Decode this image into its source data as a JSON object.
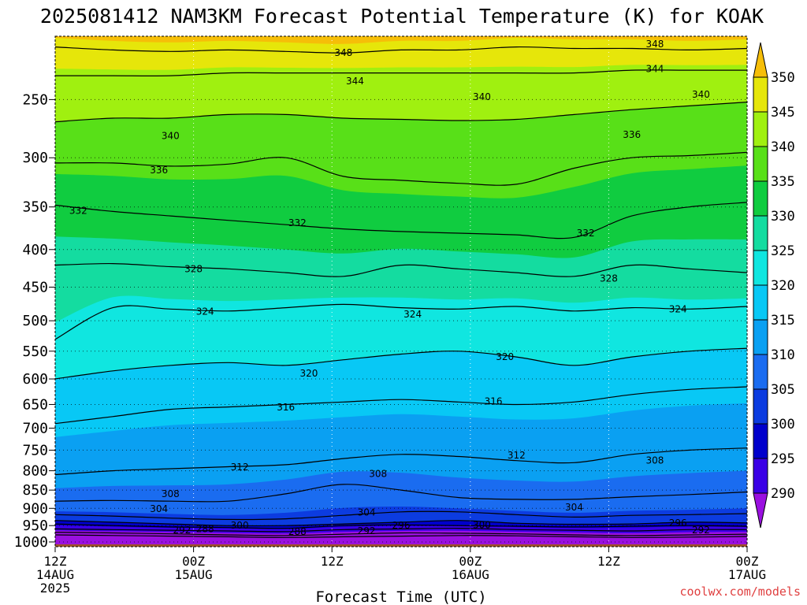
{
  "chart_data": {
    "type": "heatmap",
    "title": "2025081412 NAM3KM Forecast Potential Temperature (K) for KOAK",
    "xlabel": "Forecast Time (UTC)",
    "ylabel": "",
    "y_axis": {
      "scale": "log",
      "reversed": true,
      "range": [
        1015,
        205
      ],
      "ticks": [
        250,
        300,
        350,
        400,
        450,
        500,
        550,
        600,
        650,
        700,
        750,
        800,
        850,
        900,
        950,
        1000
      ]
    },
    "x_axis": {
      "range_hours": [
        0,
        60
      ],
      "ticks": [
        {
          "hour": 0,
          "line1": "12Z",
          "line2": "14AUG",
          "line3": "2025"
        },
        {
          "hour": 12,
          "line1": "00Z",
          "line2": "15AUG",
          "line3": ""
        },
        {
          "hour": 24,
          "line1": "12Z",
          "line2": "",
          "line3": ""
        },
        {
          "hour": 36,
          "line1": "00Z",
          "line2": "16AUG",
          "line3": ""
        },
        {
          "hour": 48,
          "line1": "12Z",
          "line2": "",
          "line3": ""
        },
        {
          "hour": 60,
          "line1": "00Z",
          "line2": "17AUG",
          "line3": ""
        }
      ]
    },
    "colorbar": {
      "levels": [
        290,
        295,
        300,
        305,
        310,
        315,
        320,
        325,
        330,
        335,
        340,
        345,
        350
      ],
      "colors": [
        "#9a10e0",
        "#3a00e6",
        "#0000cc",
        "#0c3ce0",
        "#1a6cf0",
        "#0aa0f2",
        "#08c8f5",
        "#10e6e0",
        "#14dca0",
        "#10cc40",
        "#58e018",
        "#a0f010",
        "#e6e60a",
        "#f6be08"
      ]
    },
    "grid": "dotted",
    "series": [
      {
        "theta": 286,
        "p": [
          978,
          980,
          982,
          984,
          986,
          984,
          982,
          980,
          981,
          984,
          986,
          985,
          983
        ]
      },
      {
        "theta": 288,
        "p": [
          970,
          972,
          975,
          978,
          980,
          976,
          972,
          973,
          975,
          978,
          980,
          978,
          976
        ]
      },
      {
        "theta": 292,
        "p": [
          960,
          962,
          964,
          966,
          968,
          962,
          960,
          958,
          962,
          964,
          966,
          962,
          962
        ]
      },
      {
        "theta": 296,
        "p": [
          945,
          950,
          954,
          956,
          958,
          950,
          948,
          950,
          952,
          954,
          952,
          950,
          952
        ]
      },
      {
        "theta": 300,
        "p": [
          935,
          940,
          945,
          950,
          950,
          945,
          940,
          935,
          943,
          946,
          945,
          940,
          942
        ]
      },
      {
        "theta": 304,
        "p": [
          918,
          922,
          928,
          932,
          930,
          920,
          910,
          910,
          918,
          925,
          920,
          918,
          915
        ]
      },
      {
        "theta": 308,
        "p": [
          880,
          878,
          880,
          880,
          860,
          835,
          850,
          870,
          875,
          875,
          868,
          862,
          855
        ]
      },
      {
        "theta": 312,
        "p": [
          810,
          800,
          795,
          790,
          785,
          770,
          760,
          765,
          775,
          780,
          760,
          750,
          745
        ]
      },
      {
        "theta": 316,
        "p": [
          690,
          675,
          660,
          655,
          650,
          645,
          640,
          645,
          650,
          645,
          630,
          620,
          615
        ]
      },
      {
        "theta": 320,
        "p": [
          600,
          585,
          575,
          570,
          575,
          565,
          555,
          550,
          560,
          575,
          560,
          550,
          545
        ]
      },
      {
        "theta": 324,
        "p": [
          530,
          480,
          482,
          485,
          480,
          475,
          480,
          482,
          478,
          485,
          480,
          482,
          478
        ]
      },
      {
        "theta": 328,
        "p": [
          420,
          418,
          422,
          425,
          430,
          435,
          420,
          425,
          430,
          435,
          420,
          425,
          430
        ]
      },
      {
        "theta": 332,
        "p": [
          348,
          355,
          360,
          365,
          370,
          375,
          378,
          380,
          382,
          385,
          360,
          350,
          345
        ]
      },
      {
        "theta": 336,
        "p": [
          305,
          305,
          308,
          306,
          300,
          318,
          322,
          325,
          326,
          310,
          300,
          298,
          295
        ]
      },
      {
        "theta": 340,
        "p": [
          268,
          265,
          265,
          262,
          262,
          265,
          266,
          267,
          266,
          262,
          258,
          255,
          252
        ]
      },
      {
        "theta": 344,
        "p": [
          232,
          232,
          232,
          230,
          230,
          230,
          230,
          230,
          230,
          230,
          228,
          228,
          228
        ]
      },
      {
        "theta": 348,
        "p": [
          212,
          214,
          215,
          214,
          215,
          216,
          214,
          214,
          212,
          213,
          213,
          214,
          213
        ]
      }
    ],
    "series_hours": [
      0,
      5,
      10,
      15,
      20,
      25,
      30,
      35,
      40,
      45,
      50,
      55,
      60
    ],
    "contour_labels": [
      {
        "text": "348",
        "hour": 25,
        "p": 216
      },
      {
        "text": "348",
        "hour": 52,
        "p": 210
      },
      {
        "text": "344",
        "hour": 52,
        "p": 227
      },
      {
        "text": "344",
        "hour": 26,
        "p": 236
      },
      {
        "text": "340",
        "hour": 37,
        "p": 248
      },
      {
        "text": "340",
        "hour": 56,
        "p": 246
      },
      {
        "text": "336",
        "hour": 50,
        "p": 279
      },
      {
        "text": "340",
        "hour": 10,
        "p": 280
      },
      {
        "text": "336",
        "hour": 9,
        "p": 312
      },
      {
        "text": "332",
        "hour": 2,
        "p": 354
      },
      {
        "text": "332",
        "hour": 21,
        "p": 368
      },
      {
        "text": "332",
        "hour": 46,
        "p": 380
      },
      {
        "text": "328",
        "hour": 12,
        "p": 425
      },
      {
        "text": "328",
        "hour": 48,
        "p": 438
      },
      {
        "text": "324",
        "hour": 13,
        "p": 486
      },
      {
        "text": "324",
        "hour": 31,
        "p": 490
      },
      {
        "text": "324",
        "hour": 54,
        "p": 482
      },
      {
        "text": "320",
        "hour": 39,
        "p": 560
      },
      {
        "text": "320",
        "hour": 22,
        "p": 590
      },
      {
        "text": "316",
        "hour": 20,
        "p": 656
      },
      {
        "text": "316",
        "hour": 38,
        "p": 644
      },
      {
        "text": "312",
        "hour": 16,
        "p": 791
      },
      {
        "text": "312",
        "hour": 40,
        "p": 762
      },
      {
        "text": "308",
        "hour": 10,
        "p": 860
      },
      {
        "text": "308",
        "hour": 28,
        "p": 808
      },
      {
        "text": "308",
        "hour": 52,
        "p": 775
      },
      {
        "text": "304",
        "hour": 9,
        "p": 902
      },
      {
        "text": "304",
        "hour": 27,
        "p": 912
      },
      {
        "text": "304",
        "hour": 45,
        "p": 897
      },
      {
        "text": "300",
        "hour": 16,
        "p": 950
      },
      {
        "text": "300",
        "hour": 37,
        "p": 948
      },
      {
        "text": "296",
        "hour": 30,
        "p": 950
      },
      {
        "text": "296",
        "hour": 54,
        "p": 943
      },
      {
        "text": "292",
        "hour": 11,
        "p": 964
      },
      {
        "text": "292",
        "hour": 27,
        "p": 966
      },
      {
        "text": "292",
        "hour": 56,
        "p": 964
      },
      {
        "text": "288",
        "hour": 13,
        "p": 960
      },
      {
        "text": "288",
        "hour": 21,
        "p": 969
      }
    ],
    "terrain_color": "#a0522d"
  },
  "credit": "coolwx.com/models"
}
